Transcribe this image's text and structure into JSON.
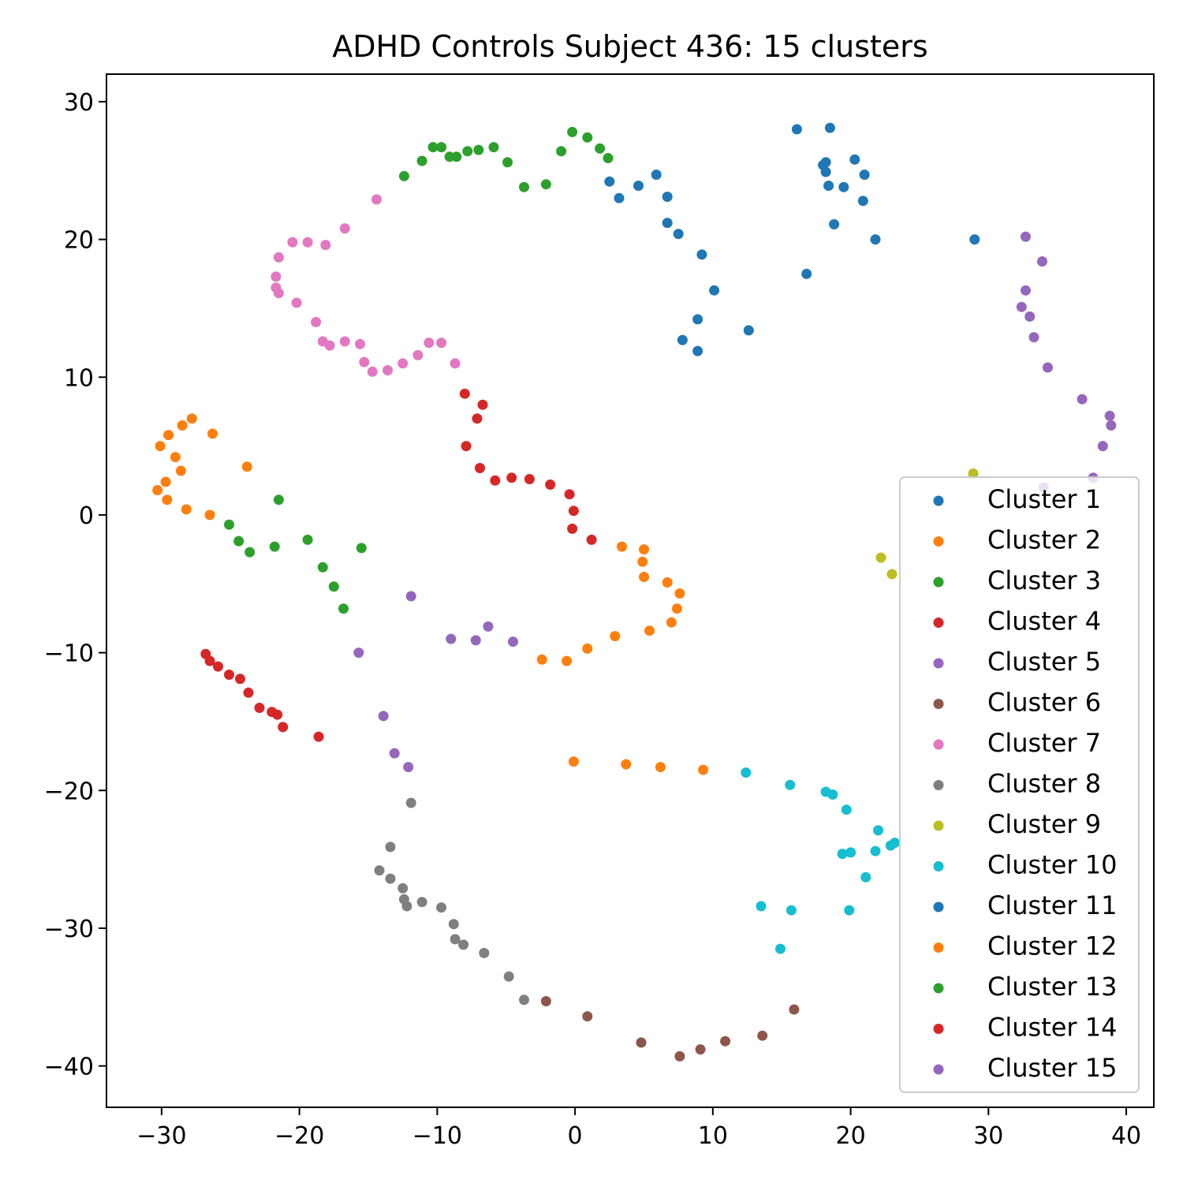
{
  "chart_data": {
    "type": "scatter",
    "title": "ADHD Controls Subject 436: 15 clusters",
    "xlabel": "",
    "ylabel": "",
    "xlim": [
      -34,
      42
    ],
    "ylim": [
      -43,
      32
    ],
    "x_ticks": [
      -30,
      -20,
      -10,
      0,
      10,
      20,
      30,
      40
    ],
    "y_ticks": [
      -40,
      -30,
      -20,
      -10,
      0,
      10,
      20,
      30
    ],
    "x_tick_labels": [
      "−30",
      "−20",
      "−10",
      "0",
      "10",
      "20",
      "30",
      "40"
    ],
    "y_tick_labels": [
      "−40",
      "−30",
      "−20",
      "−10",
      "0",
      "10",
      "20",
      "30"
    ],
    "grid": false,
    "legend_position": "lower-right",
    "series": [
      {
        "name": "Cluster 1",
        "color": "#1f77b4",
        "points": [
          [
            2.5,
            24.2
          ],
          [
            3.2,
            23.0
          ],
          [
            4.6,
            23.9
          ],
          [
            5.9,
            24.7
          ],
          [
            6.7,
            23.1
          ],
          [
            6.7,
            21.2
          ],
          [
            7.5,
            20.4
          ],
          [
            9.2,
            18.9
          ],
          [
            10.1,
            16.3
          ],
          [
            7.8,
            12.7
          ],
          [
            8.9,
            14.2
          ],
          [
            8.9,
            11.9
          ],
          [
            12.6,
            13.4
          ]
        ]
      },
      {
        "name": "Cluster 2",
        "color": "#ff7f0e",
        "points": [
          [
            3.4,
            -2.3
          ],
          [
            5.0,
            -2.5
          ],
          [
            4.9,
            -3.4
          ],
          [
            5.0,
            -4.5
          ],
          [
            6.7,
            -4.9
          ],
          [
            7.6,
            -5.7
          ],
          [
            7.4,
            -6.8
          ],
          [
            7.0,
            -7.8
          ],
          [
            5.4,
            -8.4
          ],
          [
            2.9,
            -8.8
          ],
          [
            0.9,
            -9.7
          ],
          [
            -0.6,
            -10.6
          ],
          [
            -2.4,
            -10.5
          ]
        ]
      },
      {
        "name": "Cluster 3",
        "color": "#2ca02c",
        "points": [
          [
            -12.4,
            24.6
          ],
          [
            -11.1,
            25.7
          ],
          [
            -10.3,
            26.7
          ],
          [
            -9.7,
            26.7
          ],
          [
            -9.1,
            26.0
          ],
          [
            -8.6,
            26.0
          ],
          [
            -7.8,
            26.4
          ],
          [
            -7.0,
            26.5
          ],
          [
            -5.9,
            26.7
          ],
          [
            -4.9,
            25.6
          ],
          [
            -3.7,
            23.8
          ],
          [
            -2.1,
            24.0
          ],
          [
            -1.0,
            26.4
          ],
          [
            -0.2,
            27.8
          ],
          [
            0.9,
            27.4
          ],
          [
            1.8,
            26.6
          ],
          [
            2.4,
            25.9
          ]
        ]
      },
      {
        "name": "Cluster 4",
        "color": "#d62728",
        "points": [
          [
            -8.0,
            8.8
          ],
          [
            -6.7,
            8.0
          ],
          [
            -7.1,
            7.0
          ],
          [
            -7.9,
            5.0
          ],
          [
            -6.9,
            3.4
          ],
          [
            -5.8,
            2.5
          ],
          [
            -4.6,
            2.7
          ],
          [
            -3.3,
            2.6
          ],
          [
            -1.8,
            2.2
          ],
          [
            -0.4,
            1.5
          ],
          [
            -0.1,
            0.3
          ],
          [
            -0.2,
            -1.0
          ],
          [
            1.2,
            -1.8
          ]
        ]
      },
      {
        "name": "Cluster 5",
        "color": "#9467bd",
        "points": [
          [
            -11.9,
            -5.9
          ],
          [
            -9.0,
            -9.0
          ],
          [
            -7.2,
            -9.1
          ],
          [
            -6.3,
            -8.1
          ],
          [
            -4.5,
            -9.2
          ],
          [
            -15.7,
            -10.0
          ]
        ]
      },
      {
        "name": "Cluster 6",
        "color": "#8c564b",
        "points": [
          [
            -2.1,
            -35.3
          ],
          [
            0.9,
            -36.4
          ],
          [
            4.8,
            -38.3
          ],
          [
            7.6,
            -39.3
          ],
          [
            9.1,
            -38.8
          ],
          [
            10.9,
            -38.2
          ],
          [
            13.6,
            -37.8
          ],
          [
            15.9,
            -35.9
          ]
        ]
      },
      {
        "name": "Cluster 7",
        "color": "#e377c2",
        "points": [
          [
            -14.4,
            22.9
          ],
          [
            -16.7,
            20.8
          ],
          [
            -18.1,
            19.6
          ],
          [
            -19.4,
            19.8
          ],
          [
            -20.5,
            19.8
          ],
          [
            -21.5,
            18.7
          ],
          [
            -21.7,
            17.3
          ],
          [
            -21.7,
            16.5
          ],
          [
            -21.5,
            16.1
          ],
          [
            -20.2,
            15.4
          ],
          [
            -18.8,
            14.0
          ],
          [
            -18.3,
            12.6
          ],
          [
            -17.8,
            12.3
          ],
          [
            -16.7,
            12.6
          ],
          [
            -15.6,
            12.4
          ],
          [
            -15.3,
            11.1
          ],
          [
            -14.7,
            10.4
          ],
          [
            -13.6,
            10.5
          ],
          [
            -12.5,
            11.0
          ],
          [
            -11.4,
            11.6
          ],
          [
            -10.6,
            12.5
          ],
          [
            -9.7,
            12.5
          ],
          [
            -8.7,
            11.0
          ]
        ]
      },
      {
        "name": "Cluster 8",
        "color": "#7f7f7f",
        "points": [
          [
            -11.9,
            -20.9
          ],
          [
            -13.4,
            -24.1
          ],
          [
            -14.2,
            -25.8
          ],
          [
            -13.4,
            -26.4
          ],
          [
            -12.5,
            -27.1
          ],
          [
            -12.4,
            -27.9
          ],
          [
            -12.2,
            -28.4
          ],
          [
            -11.1,
            -28.1
          ],
          [
            -9.7,
            -28.5
          ],
          [
            -8.8,
            -29.7
          ],
          [
            -8.7,
            -30.8
          ],
          [
            -8.1,
            -31.2
          ],
          [
            -6.6,
            -31.8
          ],
          [
            -4.8,
            -33.5
          ],
          [
            -3.7,
            -35.2
          ]
        ]
      },
      {
        "name": "Cluster 9",
        "color": "#bcbd22",
        "points": [
          [
            28.9,
            3.0
          ],
          [
            22.2,
            -3.1
          ],
          [
            23.0,
            -4.3
          ]
        ]
      },
      {
        "name": "Cluster 10",
        "color": "#17becf",
        "points": [
          [
            12.4,
            -18.7
          ],
          [
            15.6,
            -19.6
          ],
          [
            18.2,
            -20.1
          ],
          [
            18.7,
            -20.3
          ],
          [
            19.7,
            -21.4
          ],
          [
            22.0,
            -22.9
          ],
          [
            23.2,
            -23.8
          ],
          [
            22.9,
            -24.0
          ],
          [
            21.8,
            -24.4
          ],
          [
            20.0,
            -24.5
          ],
          [
            19.4,
            -24.6
          ],
          [
            21.1,
            -26.3
          ],
          [
            13.5,
            -28.4
          ],
          [
            15.7,
            -28.7
          ],
          [
            19.9,
            -28.7
          ],
          [
            14.9,
            -31.5
          ]
        ]
      },
      {
        "name": "Cluster 11",
        "color": "#1f77b4",
        "points": [
          [
            16.1,
            28.0
          ],
          [
            18.5,
            28.1
          ],
          [
            18.2,
            25.6
          ],
          [
            18.0,
            25.4
          ],
          [
            18.2,
            24.9
          ],
          [
            20.3,
            25.8
          ],
          [
            21.0,
            24.7
          ],
          [
            18.4,
            23.9
          ],
          [
            19.5,
            23.8
          ],
          [
            20.9,
            22.8
          ],
          [
            18.8,
            21.1
          ],
          [
            21.8,
            20.0
          ],
          [
            16.8,
            17.5
          ],
          [
            29.0,
            20.0
          ]
        ]
      },
      {
        "name": "Cluster 12",
        "color": "#ff7f0e",
        "points": [
          [
            -27.8,
            7.0
          ],
          [
            -28.5,
            6.5
          ],
          [
            -26.3,
            5.9
          ],
          [
            -29.5,
            5.8
          ],
          [
            -30.1,
            5.0
          ],
          [
            -29.0,
            4.2
          ],
          [
            -23.8,
            3.5
          ],
          [
            -28.6,
            3.2
          ],
          [
            -29.7,
            2.4
          ],
          [
            -30.3,
            1.8
          ],
          [
            -29.6,
            1.1
          ],
          [
            -28.2,
            0.4
          ],
          [
            -26.5,
            0.0
          ],
          [
            -0.1,
            -17.9
          ],
          [
            3.7,
            -18.1
          ],
          [
            6.2,
            -18.3
          ],
          [
            9.3,
            -18.5
          ]
        ]
      },
      {
        "name": "Cluster 13",
        "color": "#2ca02c",
        "points": [
          [
            -21.5,
            1.1
          ],
          [
            -25.1,
            -0.7
          ],
          [
            -24.4,
            -1.9
          ],
          [
            -21.8,
            -2.3
          ],
          [
            -19.4,
            -1.8
          ],
          [
            -15.5,
            -2.4
          ],
          [
            -23.6,
            -2.7
          ],
          [
            -18.3,
            -3.8
          ],
          [
            -17.5,
            -5.2
          ],
          [
            -16.8,
            -6.8
          ]
        ]
      },
      {
        "name": "Cluster 14",
        "color": "#d62728",
        "points": [
          [
            -26.8,
            -10.1
          ],
          [
            -26.5,
            -10.6
          ],
          [
            -25.9,
            -11.0
          ],
          [
            -25.1,
            -11.6
          ],
          [
            -24.3,
            -11.9
          ],
          [
            -23.7,
            -12.9
          ],
          [
            -22.9,
            -14.0
          ],
          [
            -22.0,
            -14.3
          ],
          [
            -21.6,
            -14.5
          ],
          [
            -21.2,
            -15.4
          ],
          [
            -18.6,
            -16.1
          ]
        ]
      },
      {
        "name": "Cluster 15",
        "color": "#9467bd",
        "points": [
          [
            32.7,
            20.2
          ],
          [
            33.9,
            18.4
          ],
          [
            32.7,
            16.3
          ],
          [
            32.4,
            15.1
          ],
          [
            33.0,
            14.4
          ],
          [
            33.3,
            12.9
          ],
          [
            34.3,
            10.7
          ],
          [
            36.8,
            8.4
          ],
          [
            38.8,
            7.2
          ],
          [
            38.9,
            6.5
          ],
          [
            38.3,
            5.0
          ],
          [
            37.6,
            2.7
          ],
          [
            34.0,
            2.0
          ],
          [
            -13.9,
            -14.6
          ],
          [
            -13.1,
            -17.3
          ],
          [
            -12.1,
            -18.3
          ]
        ]
      }
    ]
  }
}
